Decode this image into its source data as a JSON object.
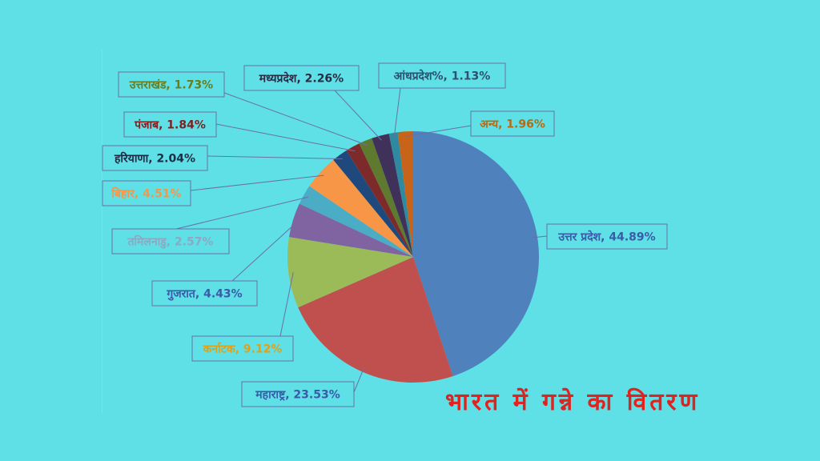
{
  "chart_data": {
    "type": "pie",
    "title": "भारत में गन्ने का वितरण",
    "slices": [
      {
        "label": "उत्तर प्रदेश, 44.89%",
        "value": 44.89,
        "color": "#4f81bd",
        "text_color": "#3b5aa8"
      },
      {
        "label": "महाराष्ट्र, 23.53%",
        "value": 23.53,
        "color": "#c0504d",
        "text_color": "#3b5aa8"
      },
      {
        "label": "कर्नाटक, 9.12%",
        "value": 9.12,
        "color": "#9bbb59",
        "text_color": "#e0a11a"
      },
      {
        "label": "गुजरात, 4.43%",
        "value": 4.43,
        "color": "#8064a2",
        "text_color": "#3b5aa8"
      },
      {
        "label": "तमिलनाडु, 2.57%",
        "value": 2.57,
        "color": "#4bacc6",
        "text_color": "#8fa7c2"
      },
      {
        "label": "बिहार, 4.51%",
        "value": 4.51,
        "color": "#f79646",
        "text_color": "#f79646"
      },
      {
        "label": "हरियाणा, 2.04%",
        "value": 2.04,
        "color": "#1f497d",
        "text_color": "#1f2a44"
      },
      {
        "label": "पंजाब, 1.84%",
        "value": 1.84,
        "color": "#7f2a2a",
        "text_color": "#7f1f1f"
      },
      {
        "label": "उत्तराखंड, 1.73%",
        "value": 1.73,
        "color": "#5f7a2e",
        "text_color": "#6a7d1e"
      },
      {
        "label": "मध्यप्रदेश, 2.26%",
        "value": 2.26,
        "color": "#40315a",
        "text_color": "#2b2b44"
      },
      {
        "label": "आंधप्रदेश%, 1.13%",
        "value": 1.13,
        "color": "#2f8aa0",
        "text_color": "#2f4f6f"
      },
      {
        "label": "अन्य, 1.96%",
        "value": 1.96,
        "color": "#c8641a",
        "text_color": "#b86a12"
      }
    ]
  }
}
